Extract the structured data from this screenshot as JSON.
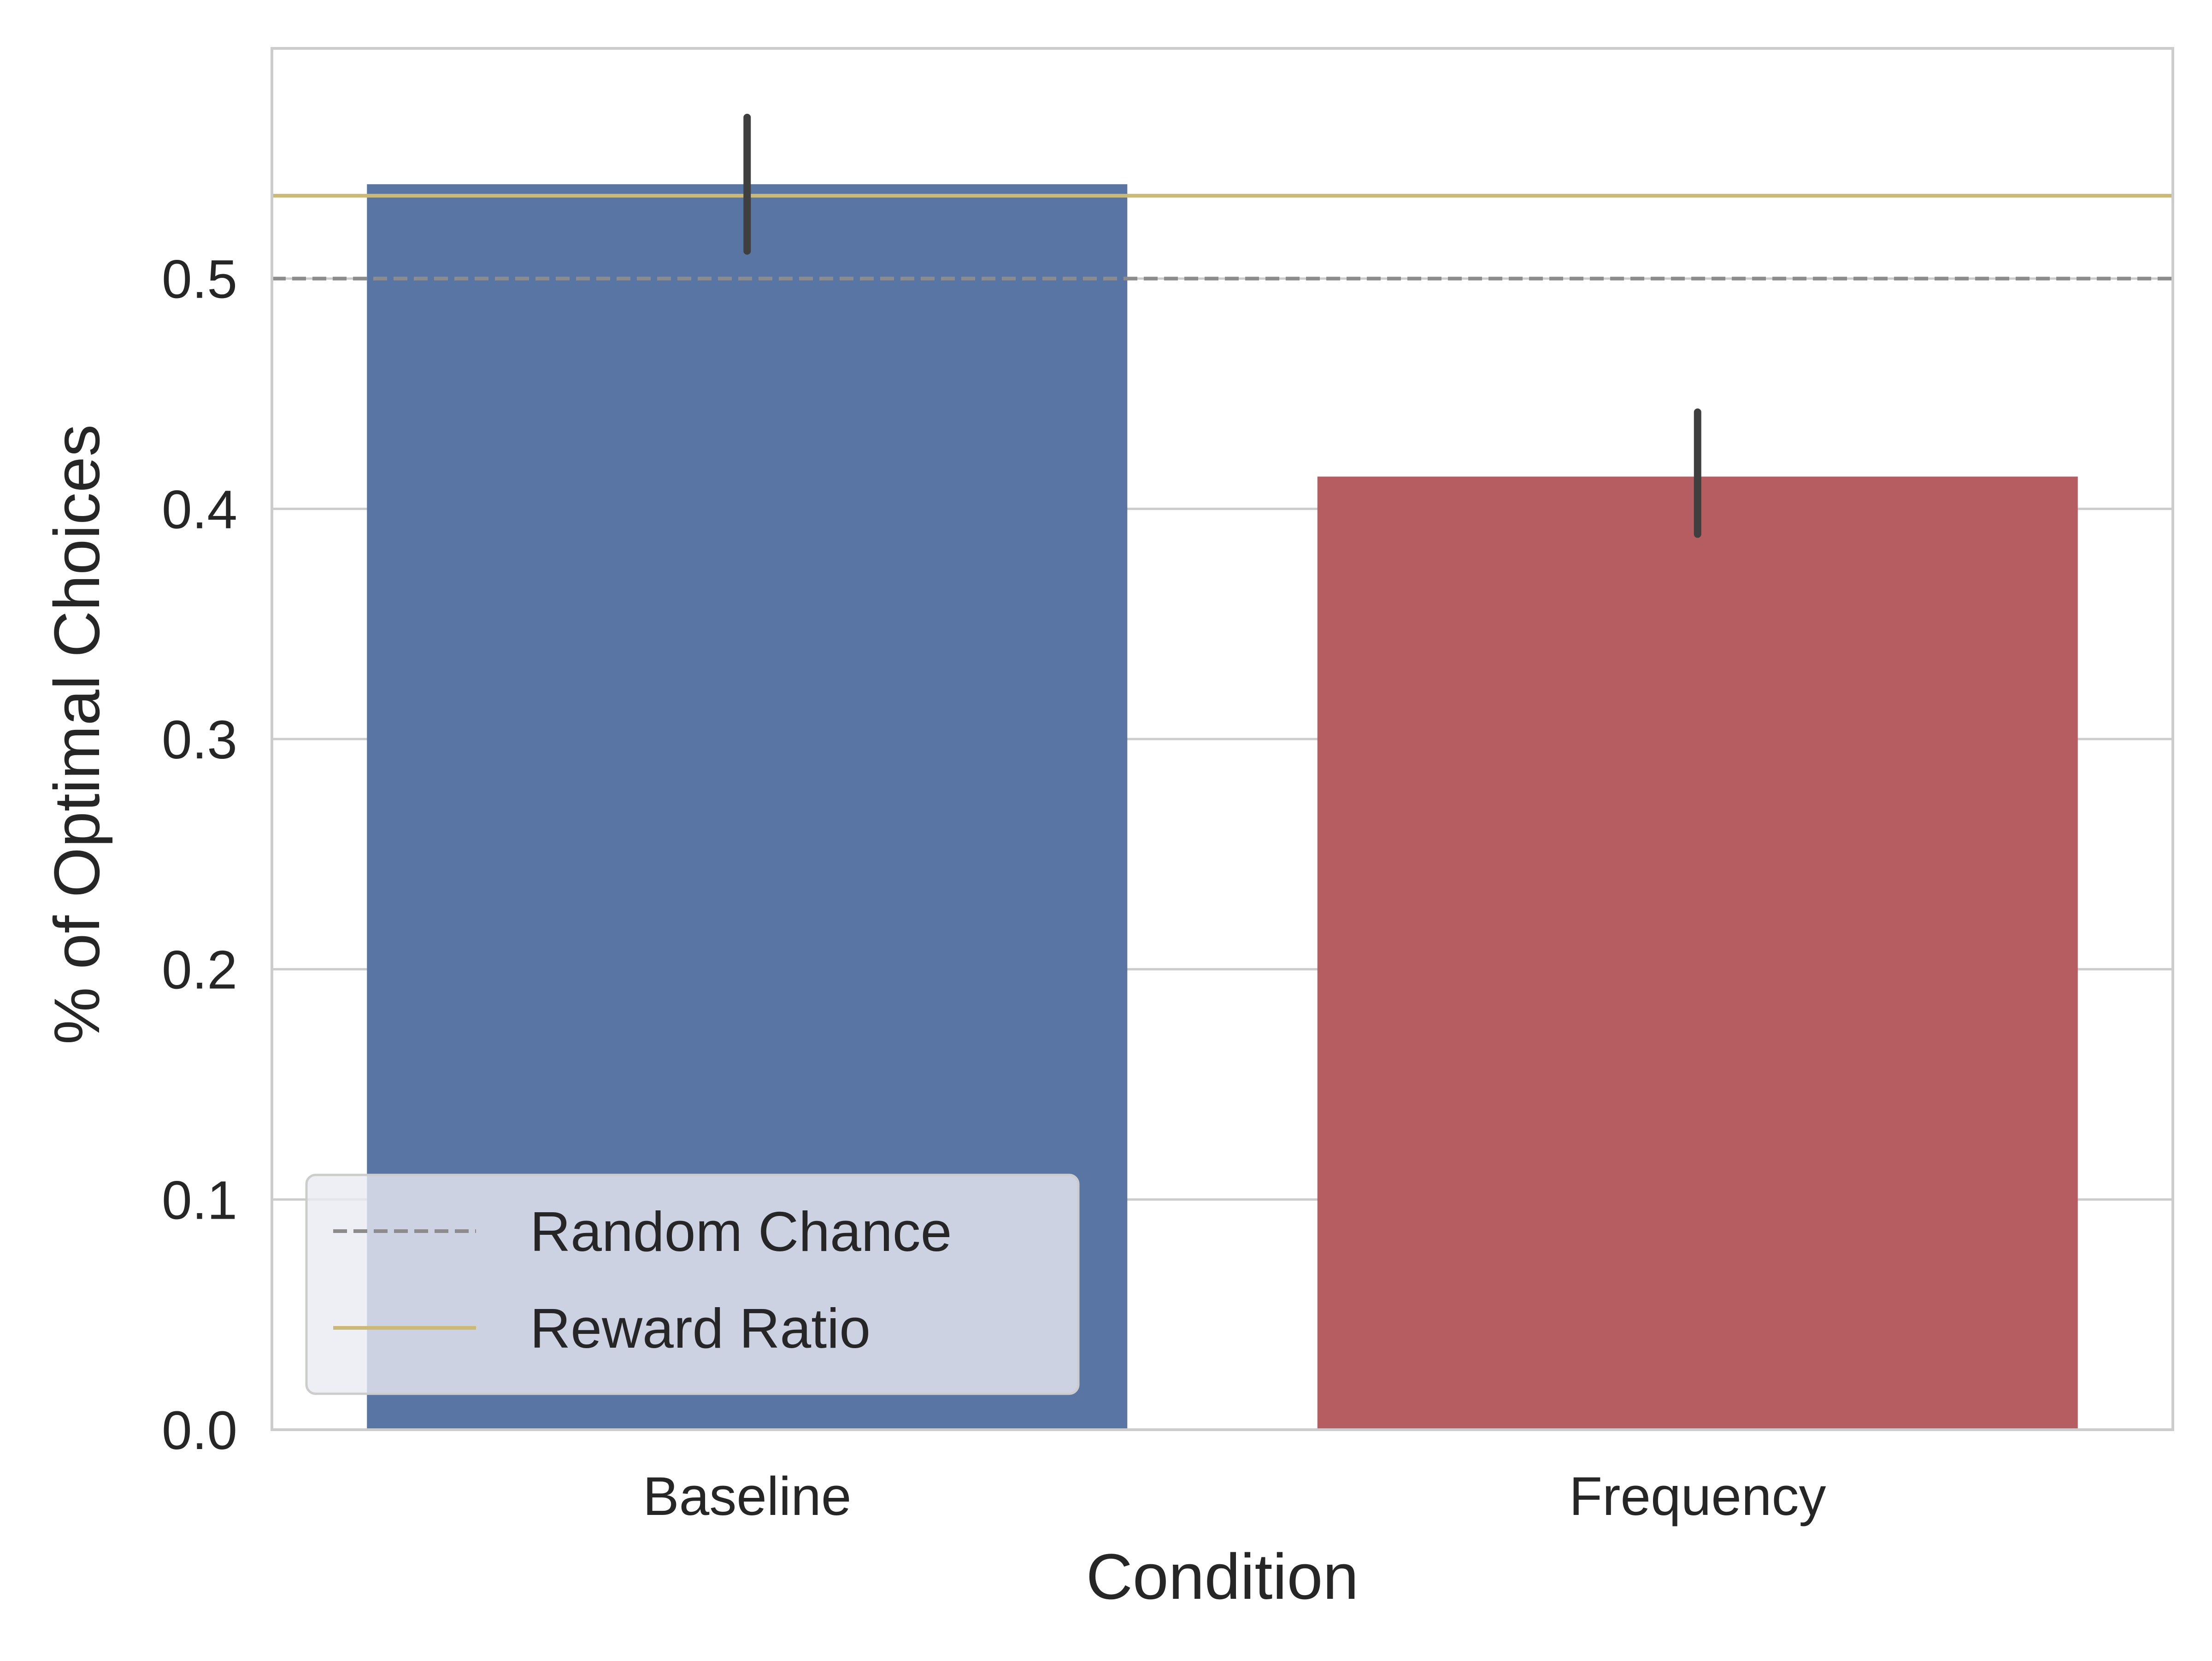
{
  "chart_data": {
    "type": "bar",
    "title": "",
    "xlabel": "Condition",
    "ylabel": "% of Optimal Choices",
    "categories": [
      "Baseline",
      "Frequency"
    ],
    "values": [
      0.541,
      0.414
    ],
    "error_bars": [
      [
        0.512,
        0.57
      ],
      [
        0.389,
        0.442
      ]
    ],
    "bar_colors": [
      "#5975a4",
      "#b55d60"
    ],
    "error_bar_color": "#3f3f3f",
    "ylim": [
      0,
      0.6
    ],
    "yticks": [
      0.0,
      0.1,
      0.2,
      0.3,
      0.4,
      0.5
    ],
    "ytick_labels": [
      "0.0",
      "0.1",
      "0.2",
      "0.3",
      "0.4",
      "0.5"
    ],
    "grid": true,
    "grid_axis": "y",
    "reference_lines": [
      {
        "name": "Random Chance",
        "value": 0.5,
        "color": "#8c8c8c",
        "style": "dashed"
      },
      {
        "name": "Reward Ratio",
        "value": 0.536,
        "color": "#ccb974",
        "style": "solid"
      }
    ],
    "legend": {
      "placement": "lower-left",
      "entries": [
        "Random Chance",
        "Reward Ratio"
      ]
    }
  }
}
